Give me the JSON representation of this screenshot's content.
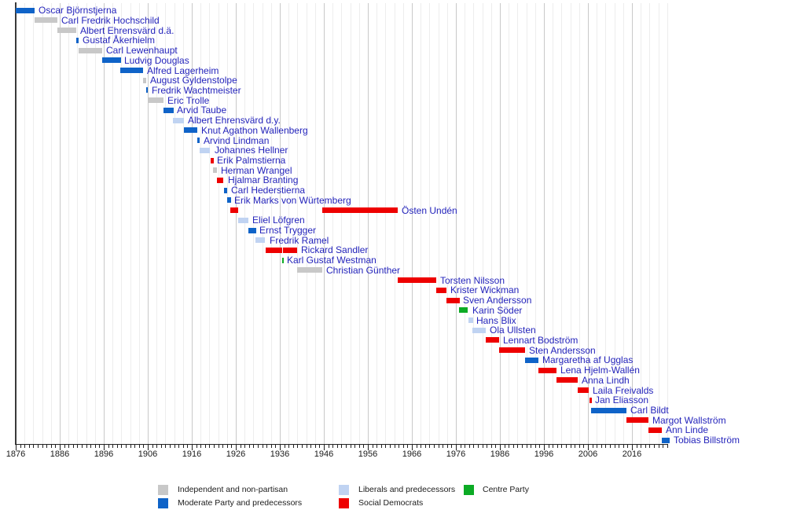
{
  "chart_data": {
    "type": "timeline",
    "description": "Timeline of Swedish Ministers for Foreign Affairs colored by party affiliation",
    "axis": {
      "start_year": 1876,
      "end_year": 2024.5,
      "major_tick_step_years": 10,
      "minor_grid_step_years": 2,
      "tick_labels": [
        "1876",
        "1886",
        "1896",
        "1906",
        "1916",
        "1926",
        "1936",
        "1946",
        "1956",
        "1966",
        "1976",
        "1986",
        "1996",
        "2006",
        "2016"
      ]
    },
    "parties": {
      "independent": {
        "label": "Independent and non-partisan",
        "color": "#c8c8c8"
      },
      "moderate": {
        "label": "Moderate Party and predecessors",
        "color": "#0f63c8"
      },
      "liberal": {
        "label": "Liberals and predecessors",
        "color": "#c0d3f2"
      },
      "social_democrat": {
        "label": "Social Democrats",
        "color": "#ee0000"
      },
      "centre": {
        "label": "Centre Party",
        "color": "#0cab25"
      }
    },
    "ministers": [
      {
        "name": "Oscar Björnstjerna",
        "party": "moderate",
        "terms": [
          [
            1876.0,
            1880.3
          ]
        ]
      },
      {
        "name": "Carl Fredrik Hochschild",
        "party": "independent",
        "terms": [
          [
            1880.3,
            1885.4
          ]
        ]
      },
      {
        "name": "Albert Ehrensvärd d.ä.",
        "party": "independent",
        "terms": [
          [
            1885.4,
            1889.75
          ]
        ]
      },
      {
        "name": "Gustaf Åkerhielm",
        "party": "moderate",
        "terms": [
          [
            1889.75,
            1890.3
          ]
        ]
      },
      {
        "name": "Carl Lewenhaupt",
        "party": "independent",
        "terms": [
          [
            1890.3,
            1895.6
          ]
        ]
      },
      {
        "name": "Ludvig Douglas",
        "party": "moderate",
        "terms": [
          [
            1895.6,
            1899.8
          ]
        ]
      },
      {
        "name": "Alfred Lagerheim",
        "party": "moderate",
        "terms": [
          [
            1899.8,
            1904.9
          ]
        ]
      },
      {
        "name": "August Gyldenstolpe",
        "party": "independent",
        "terms": [
          [
            1904.9,
            1905.6
          ]
        ]
      },
      {
        "name": "Fredrik Wachtmeister",
        "party": "moderate",
        "terms": [
          [
            1905.6,
            1905.95
          ]
        ]
      },
      {
        "name": "Eric Trolle",
        "party": "independent",
        "terms": [
          [
            1905.95,
            1909.5
          ]
        ]
      },
      {
        "name": "Arvid Taube",
        "party": "moderate",
        "terms": [
          [
            1909.5,
            1911.75
          ]
        ]
      },
      {
        "name": "Albert Ehrensvärd d.y.",
        "party": "liberal",
        "terms": [
          [
            1911.75,
            1914.2
          ]
        ]
      },
      {
        "name": "Knut Agathon Wallenberg",
        "party": "moderate",
        "terms": [
          [
            1914.2,
            1917.25
          ]
        ]
      },
      {
        "name": "Arvind Lindman",
        "party": "moderate",
        "terms": [
          [
            1917.25,
            1917.8
          ]
        ]
      },
      {
        "name": "Johannes Hellner",
        "party": "liberal",
        "terms": [
          [
            1917.8,
            1920.2
          ]
        ]
      },
      {
        "name": "Erik Palmstierna",
        "party": "social_democrat",
        "terms": [
          [
            1920.2,
            1920.85
          ]
        ]
      },
      {
        "name": "Herman Wrangel",
        "party": "independent",
        "terms": [
          [
            1920.85,
            1921.8
          ]
        ]
      },
      {
        "name": "Hjalmar Branting",
        "party": "social_democrat",
        "terms": [
          [
            1921.8,
            1923.3
          ]
        ]
      },
      {
        "name": "Carl Hederstierna",
        "party": "moderate",
        "terms": [
          [
            1923.3,
            1923.95
          ]
        ]
      },
      {
        "name": "Erik Marks von Würtemberg",
        "party": "moderate",
        "terms": [
          [
            1923.95,
            1924.8
          ]
        ]
      },
      {
        "name": "Östen Undén",
        "party": "social_democrat",
        "terms": [
          [
            1924.8,
            1926.5
          ],
          [
            1945.6,
            1962.7
          ]
        ]
      },
      {
        "name": "Eliel Löfgren",
        "party": "liberal",
        "terms": [
          [
            1926.5,
            1928.8
          ]
        ]
      },
      {
        "name": "Ernst Trygger",
        "party": "moderate",
        "terms": [
          [
            1928.8,
            1930.5
          ]
        ]
      },
      {
        "name": "Fredrik Ramel",
        "party": "liberal",
        "terms": [
          [
            1930.5,
            1932.7
          ]
        ]
      },
      {
        "name": "Rickard Sandler",
        "party": "social_democrat",
        "terms": [
          [
            1932.7,
            1936.5
          ],
          [
            1936.75,
            1939.95
          ]
        ]
      },
      {
        "name": "Karl Gustaf Westman",
        "party": "centre",
        "terms": [
          [
            1936.5,
            1936.75
          ]
        ]
      },
      {
        "name": "Christian Günther",
        "party": "independent",
        "terms": [
          [
            1939.95,
            1945.6
          ]
        ]
      },
      {
        "name": "Torsten Nilsson",
        "party": "social_democrat",
        "terms": [
          [
            1962.7,
            1971.5
          ]
        ]
      },
      {
        "name": "Krister Wickman",
        "party": "social_democrat",
        "terms": [
          [
            1971.5,
            1973.8
          ]
        ]
      },
      {
        "name": "Sven Andersson",
        "party": "social_democrat",
        "terms": [
          [
            1973.8,
            1976.8
          ]
        ]
      },
      {
        "name": "Karin Söder",
        "party": "centre",
        "terms": [
          [
            1976.8,
            1978.8
          ]
        ]
      },
      {
        "name": "Hans Blix",
        "party": "liberal",
        "terms": [
          [
            1978.8,
            1979.8
          ]
        ]
      },
      {
        "name": "Ola Ullsten",
        "party": "liberal",
        "terms": [
          [
            1979.8,
            1982.75
          ]
        ]
      },
      {
        "name": "Lennart Bodström",
        "party": "social_democrat",
        "terms": [
          [
            1982.75,
            1985.8
          ]
        ]
      },
      {
        "name": "Sten Andersson",
        "party": "social_democrat",
        "terms": [
          [
            1985.8,
            1991.75
          ]
        ]
      },
      {
        "name": "Margaretha af Ugglas",
        "party": "moderate",
        "terms": [
          [
            1991.75,
            1994.75
          ]
        ]
      },
      {
        "name": "Lena Hjelm-Wallén",
        "party": "social_democrat",
        "terms": [
          [
            1994.75,
            1998.8
          ]
        ]
      },
      {
        "name": "Anna Lindh",
        "party": "social_democrat",
        "terms": [
          [
            1998.8,
            2003.7
          ]
        ]
      },
      {
        "name": "Laila Freivalds",
        "party": "social_democrat",
        "terms": [
          [
            2003.75,
            2006.25
          ]
        ]
      },
      {
        "name": "Jan Eliasson",
        "party": "social_democrat",
        "terms": [
          [
            2006.3,
            2006.75
          ]
        ]
      },
      {
        "name": "Carl Bildt",
        "party": "moderate",
        "terms": [
          [
            2006.75,
            2014.75
          ]
        ]
      },
      {
        "name": "Margot Wallström",
        "party": "social_democrat",
        "terms": [
          [
            2014.75,
            2019.7
          ]
        ]
      },
      {
        "name": "Ann Linde",
        "party": "social_democrat",
        "terms": [
          [
            2019.7,
            2022.8
          ]
        ]
      },
      {
        "name": "Tobias Billström",
        "party": "moderate",
        "terms": [
          [
            2022.8,
            2024.5
          ]
        ]
      }
    ],
    "legend": {
      "rows": [
        [
          "independent",
          "liberal",
          "centre"
        ],
        [
          "moderate",
          "social_democrat"
        ]
      ]
    }
  }
}
